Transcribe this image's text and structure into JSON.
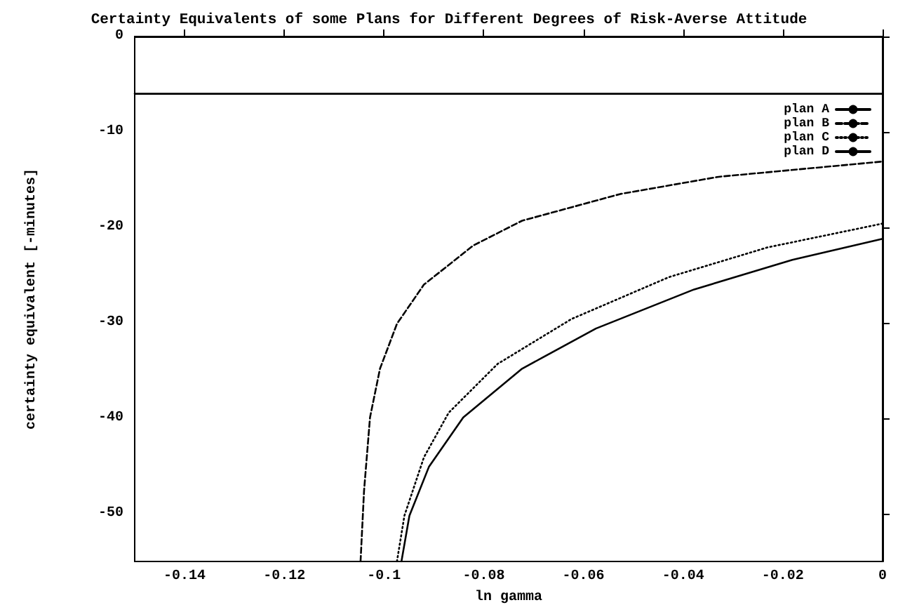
{
  "chart_data": {
    "type": "line",
    "title": "Certainty Equivalents of some Plans for Different Degrees of Risk-Averse Attitude",
    "xlabel": "ln gamma",
    "ylabel": "certainty equivalent [-minutes]",
    "xlim": [
      -0.15,
      0
    ],
    "xticks": [
      -0.14,
      -0.12,
      -0.1,
      -0.08,
      -0.06,
      -0.04,
      -0.02,
      0
    ],
    "ylim": [
      -55,
      0
    ],
    "yticks": [
      -50,
      -40,
      -30,
      -20,
      -10,
      0
    ],
    "grid": false,
    "legend": "top right",
    "marker": "none",
    "series": [
      {
        "name": "plan A",
        "color": "#000000",
        "line_style": "solid",
        "x": [
          -0.15,
          0
        ],
        "values": [
          -6,
          -6
        ]
      },
      {
        "name": "plan B",
        "color": "#000000",
        "line_style": "dashed",
        "x": [
          -0.1047,
          -0.104,
          -0.1028,
          -0.1008,
          -0.0974,
          -0.092,
          -0.0821,
          -0.0723,
          -0.0526,
          -0.0329,
          0
        ],
        "values": [
          -55,
          -47.6,
          -39.9,
          -34.8,
          -30.1,
          -26,
          -21.9,
          -19.3,
          -16.5,
          -14.7,
          -13.1
        ]
      },
      {
        "name": "plan C",
        "color": "#000000",
        "line_style": "dotted",
        "x": [
          -0.0974,
          -0.0959,
          -0.092,
          -0.087,
          -0.0772,
          -0.0624,
          -0.0428,
          -0.0231,
          0
        ],
        "values": [
          -55,
          -50.2,
          -44.1,
          -39.4,
          -34.3,
          -29.6,
          -25.2,
          -22.1,
          -19.6
        ]
      },
      {
        "name": "plan D",
        "color": "#000000",
        "line_style": "solid",
        "x": [
          -0.0965,
          -0.0949,
          -0.091,
          -0.0841,
          -0.0723,
          -0.0575,
          -0.0378,
          -0.0181,
          0
        ],
        "values": [
          -55,
          -50.2,
          -45.1,
          -39.9,
          -34.8,
          -30.6,
          -26.5,
          -23.4,
          -21.2
        ]
      }
    ]
  }
}
